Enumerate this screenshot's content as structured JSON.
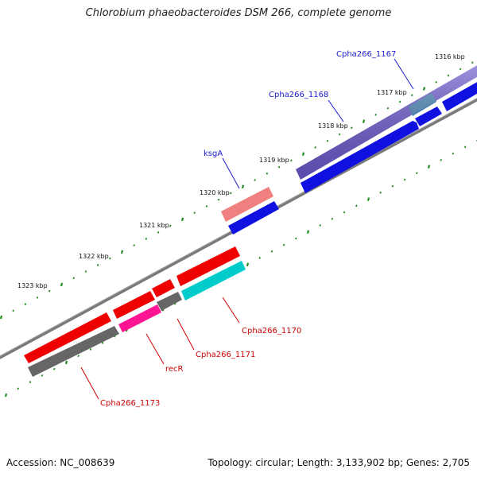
{
  "title": "Chlorobium phaeobacteroides DSM 266, complete genome",
  "footer": {
    "accession": "Accession: NC_008639",
    "topology": "Topology: circular; Length: 3,133,902 bp; Genes: 2,705"
  },
  "tick_labels": [
    "1316 kbp",
    "1317 kbp",
    "1318 kbp",
    "1319 kbp",
    "1320 kbp",
    "1321 kbp",
    "1322 kbp",
    "1323 kbp"
  ],
  "colors": {
    "forward_label": "#1a1acc",
    "reverse_label": "#cc0000",
    "tick": "#1f8a1f",
    "backbone": "#7a7a7a"
  },
  "genes": [
    {
      "label": "Cpha266_1167",
      "strand": "+",
      "color": "#6a5acd"
    },
    {
      "label": "Cpha266_1168",
      "strand": "+",
      "color": "#1010e0"
    },
    {
      "label": "ksgA",
      "strand": "+",
      "color": "#f08080"
    },
    {
      "label": "Cpha266_1170",
      "strand": "-",
      "color": "#00cccc"
    },
    {
      "label": "Cpha266_1171",
      "strand": "-",
      "color": "#666666"
    },
    {
      "label": "recR",
      "strand": "-",
      "color": "#ff1493"
    },
    {
      "label": "Cpha266_1173",
      "strand": "-",
      "color": "#ee0000"
    }
  ]
}
